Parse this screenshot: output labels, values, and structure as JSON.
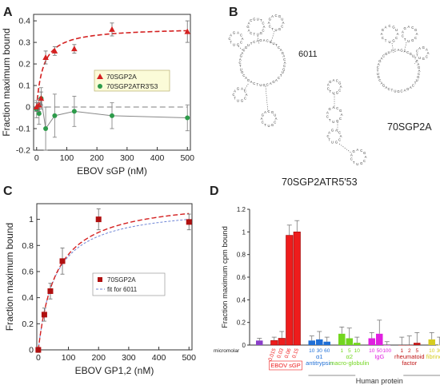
{
  "panels": {
    "A": "A",
    "B": "B",
    "C": "C",
    "D": "D"
  },
  "colors": {
    "red": "#d42020",
    "dark_red": "#b01010",
    "green": "#2d9b4a",
    "gray": "#888888",
    "blue": "#6f86d6"
  },
  "chart_data": [
    {
      "type": "scatter",
      "panel": "A",
      "xlabel": "EBOV sGP (nM)",
      "ylabel": "Fraction maximum bound",
      "xlim": [
        -10,
        510
      ],
      "ylim": [
        -0.2,
        0.43
      ],
      "xticks": [
        0,
        100,
        200,
        300,
        400,
        500
      ],
      "yticks": [
        -0.2,
        -0.1,
        0,
        0.1,
        0.2,
        0.3,
        0.4
      ],
      "legend": [
        "70SGP2A",
        "70SGP2ATR3'53"
      ],
      "legend_position": "center",
      "series": [
        {
          "name": "70SGP2A",
          "color": "#d42020",
          "marker": "triangle",
          "points": [
            {
              "x": 0,
              "y": 0.0,
              "err": 0.02
            },
            {
              "x": 8,
              "y": 0.01,
              "err": 0.03
            },
            {
              "x": 15,
              "y": 0.04,
              "err": 0.03
            },
            {
              "x": 30,
              "y": 0.23,
              "err": 0.03
            },
            {
              "x": 60,
              "y": 0.26,
              "err": 0.02
            },
            {
              "x": 125,
              "y": 0.27,
              "err": 0.02
            },
            {
              "x": 250,
              "y": 0.36,
              "err": 0.03
            },
            {
              "x": 500,
              "y": 0.35,
              "err": 0.05
            }
          ],
          "fit": {
            "bmax": 0.37,
            "kd": 22
          }
        },
        {
          "name": "70SGP2ATR3'53",
          "color": "#2d9b4a",
          "marker": "circle",
          "points": [
            {
              "x": 0,
              "y": -0.01,
              "err": 0.04
            },
            {
              "x": 8,
              "y": -0.03,
              "err": 0.05
            },
            {
              "x": 15,
              "y": 0.04,
              "err": 0.05
            },
            {
              "x": 30,
              "y": -0.1,
              "err": 0.1
            },
            {
              "x": 60,
              "y": -0.04,
              "err": 0.1
            },
            {
              "x": 125,
              "y": -0.02,
              "err": 0.07
            },
            {
              "x": 250,
              "y": -0.04,
              "err": 0.06
            },
            {
              "x": 500,
              "y": -0.05,
              "err": 0.06
            }
          ]
        }
      ]
    },
    {
      "type": "diagram",
      "panel": "B",
      "labels": [
        "6011",
        "70SGP2A",
        "70SGP2ATR5'53"
      ]
    },
    {
      "type": "scatter",
      "panel": "C",
      "xlabel": "EBOV GP1,2 (nM)",
      "ylabel": "Fraction maximum bound",
      "xlim": [
        -5,
        510
      ],
      "ylim": [
        0,
        1.12
      ],
      "xticks": [
        0,
        100,
        200,
        300,
        400,
        500
      ],
      "yticks": [
        0,
        0.2,
        0.4,
        0.6,
        0.8,
        1.0
      ],
      "legend": [
        "70SGP2A",
        "fit for 6011"
      ],
      "legend_position": "center-right",
      "series": [
        {
          "name": "70SGP2A",
          "color": "#b01010",
          "marker": "square",
          "points": [
            {
              "x": 0,
              "y": 0.0,
              "err": 0.02
            },
            {
              "x": 20,
              "y": 0.27,
              "err": 0.05
            },
            {
              "x": 40,
              "y": 0.45,
              "err": 0.06
            },
            {
              "x": 80,
              "y": 0.68,
              "err": 0.1
            },
            {
              "x": 200,
              "y": 1.0,
              "err": 0.08
            },
            {
              "x": 500,
              "y": 0.98,
              "err": 0.06
            }
          ],
          "fit": {
            "bmax": 1.17,
            "kd": 60
          }
        },
        {
          "name": "fit for 6011",
          "color": "#6f86d6",
          "fit": {
            "bmax": 1.11,
            "kd": 55
          }
        }
      ]
    },
    {
      "type": "bar",
      "panel": "D",
      "ylabel": "Fraction maximum cpm bound",
      "ylim": [
        0,
        1.2
      ],
      "yticks": [
        "0",
        "0.2",
        "0.4",
        "0.6",
        "0.8",
        "1",
        "1.2"
      ],
      "unit_label": "micromolar",
      "footer": "Human protein",
      "groups": [
        {
          "name": "",
          "color": "#8b3fc9",
          "bars": [
            {
              "conc": "",
              "value": 0.04,
              "err": 0.02
            }
          ]
        },
        {
          "name": "EBOV sGP",
          "color": "#ee1c1c",
          "bars": [
            {
              "conc": "0.015",
              "value": 0.04,
              "err": 0.03
            },
            {
              "conc": "0.03",
              "value": 0.06,
              "err": 0.06
            },
            {
              "conc": "0.06",
              "value": 0.97,
              "err": 0.09
            },
            {
              "conc": "0.15",
              "value": 1.0,
              "err": 0.1
            }
          ]
        },
        {
          "name": "α1 antitrypsin",
          "color": "#1f6fd6",
          "bars": [
            {
              "conc": "10",
              "value": 0.04,
              "err": 0.04
            },
            {
              "conc": "30",
              "value": 0.05,
              "err": 0.07
            },
            {
              "conc": "60",
              "value": 0.03,
              "err": 0.04
            }
          ]
        },
        {
          "name": "α2 macro-globulin",
          "color": "#72d61e",
          "bars": [
            {
              "conc": "1",
              "value": 0.1,
              "err": 0.06
            },
            {
              "conc": "5",
              "value": 0.06,
              "err": 0.09
            },
            {
              "conc": "10",
              "value": 0.02,
              "err": 0.05
            }
          ]
        },
        {
          "name": "IgG",
          "color": "#e020e0",
          "bars": [
            {
              "conc": "10",
              "value": 0.06,
              "err": 0.05
            },
            {
              "conc": "50",
              "value": 0.1,
              "err": 0.12
            },
            {
              "conc": "100",
              "value": 0.0,
              "err": 0.03
            }
          ]
        },
        {
          "name": "rheumatoid factor",
          "color": "#c01818",
          "bars": [
            {
              "conc": "1",
              "value": 0.0,
              "err": 0.07
            },
            {
              "conc": "2",
              "value": 0.0,
              "err": 0.08
            },
            {
              "conc": "5",
              "value": 0.02,
              "err": 0.09
            }
          ]
        },
        {
          "name": "fibrinogen",
          "color": "#d6cc1e",
          "bars": [
            {
              "conc": "10",
              "value": 0.05,
              "err": 0.06
            },
            {
              "conc": "30",
              "value": 0.0,
              "err": 0.07
            },
            {
              "conc": "60",
              "value": 0.02,
              "err": 0.05
            }
          ]
        }
      ]
    }
  ]
}
